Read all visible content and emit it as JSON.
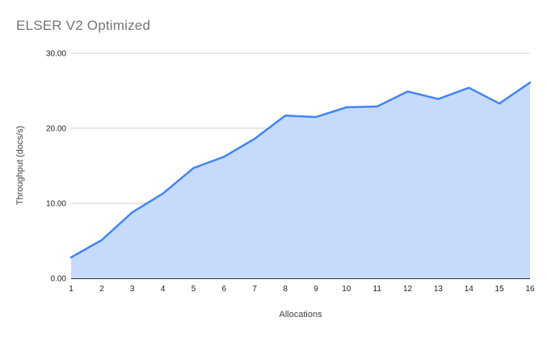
{
  "chart_data": {
    "type": "area",
    "title": "ELSER V2 Optimized",
    "xlabel": "Allocations",
    "ylabel": "Throughput (docs/s)",
    "x": [
      1,
      2,
      3,
      4,
      5,
      6,
      7,
      8,
      9,
      10,
      11,
      12,
      13,
      14,
      15,
      16
    ],
    "x_labels": [
      "1",
      "2",
      "3",
      "4",
      "5",
      "6",
      "7",
      "8",
      "9",
      "10",
      "11",
      "12",
      "13",
      "14",
      "15",
      "16"
    ],
    "series": [
      {
        "name": "Throughput (docs/s)",
        "values": [
          2.8,
          5.1,
          8.8,
          11.3,
          14.7,
          16.2,
          18.6,
          21.7,
          21.5,
          22.8,
          22.9,
          24.9,
          23.9,
          25.4,
          23.3,
          26.1
        ]
      }
    ],
    "ylim": [
      0,
      30
    ],
    "yticks": [
      0,
      10,
      20,
      30
    ],
    "ytick_labels": [
      "0.00",
      "10.00",
      "20.00",
      "30.00"
    ],
    "grid": true,
    "legend": "none",
    "colors": {
      "line": "#4285f4",
      "fill": "#c6dafb",
      "gridline": "#cccccc",
      "axis_line": "#333333",
      "tick_label": "#222222",
      "axis_title": "#424242",
      "chart_title": "#757575"
    }
  }
}
